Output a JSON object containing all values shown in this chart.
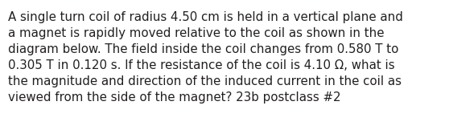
{
  "text": "A single turn coil of radius 4.50 cm is held in a vertical plane and\na magnet is rapidly moved relative to the coil as shown in the\ndiagram below. The field inside the coil changes from 0.580 T to\n0.305 T in 0.120 s. If the resistance of the coil is 4.10 Ω, what is\nthe magnitude and direction of the induced current in the coil as\nviewed from the side of the magnet? 23b postclass #2",
  "background_color": "#ffffff",
  "text_color": "#231f20",
  "font_size": 10.8,
  "figwidth": 5.58,
  "figheight": 1.67,
  "dpi": 100
}
